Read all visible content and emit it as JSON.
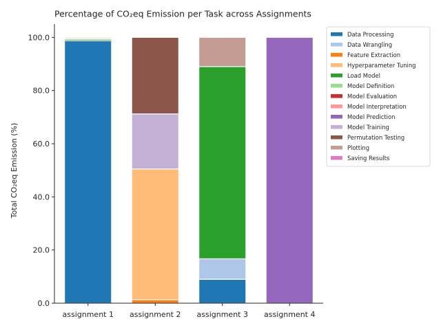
{
  "chart_data": {
    "type": "bar",
    "stacked": true,
    "title": "Percentage of CO₂eq Emission per Task across Assignments",
    "xlabel": "",
    "ylabel": "Total CO₂eq Emission (%)",
    "ylim": [
      0,
      105
    ],
    "yticks": [
      0,
      20,
      40,
      60,
      80,
      100
    ],
    "ytick_labels": [
      "0.0",
      "20.0",
      "40.0",
      "60.0",
      "80.0",
      "100.0"
    ],
    "grid": false,
    "legend_position": "outside-right",
    "categories": [
      "assignment 1",
      "assignment 2",
      "assignment 3",
      "assignment 4"
    ],
    "series": [
      {
        "name": "Data Processing",
        "color": "#1f77b4",
        "values": [
          98.7,
          0,
          9.0,
          0
        ]
      },
      {
        "name": "Data Wrangling",
        "color": "#aec7e8",
        "values": [
          0,
          0,
          7.7,
          0
        ]
      },
      {
        "name": "Feature Extraction",
        "color": "#ff7f0e",
        "values": [
          0,
          1.3,
          0,
          0
        ]
      },
      {
        "name": "Hyperparameter Tuning",
        "color": "#ffbb78",
        "values": [
          0,
          49.2,
          0,
          0
        ]
      },
      {
        "name": "Load Model",
        "color": "#2ca02c",
        "values": [
          0.6,
          0,
          72.3,
          0
        ]
      },
      {
        "name": "Model Definition",
        "color": "#98df8a",
        "values": [
          0.3,
          0,
          0,
          0
        ]
      },
      {
        "name": "Model Evaluation",
        "color": "#d62728",
        "values": [
          0,
          0,
          0,
          0
        ]
      },
      {
        "name": "Model Interpretation",
        "color": "#ff9896",
        "values": [
          0,
          0,
          0,
          0
        ]
      },
      {
        "name": "Model Prediction",
        "color": "#9467bd",
        "values": [
          0,
          0,
          0,
          100
        ]
      },
      {
        "name": "Model Training",
        "color": "#c5b0d5",
        "values": [
          0,
          20.7,
          0,
          0
        ]
      },
      {
        "name": "Permutation Testing",
        "color": "#8c564b",
        "values": [
          0,
          28.8,
          0,
          0
        ]
      },
      {
        "name": "Plotting",
        "color": "#c49c94",
        "values": [
          0.4,
          0,
          11.0,
          0
        ]
      },
      {
        "name": "Saving Results",
        "color": "#e377c2",
        "values": [
          0,
          0,
          0,
          0
        ]
      }
    ]
  }
}
